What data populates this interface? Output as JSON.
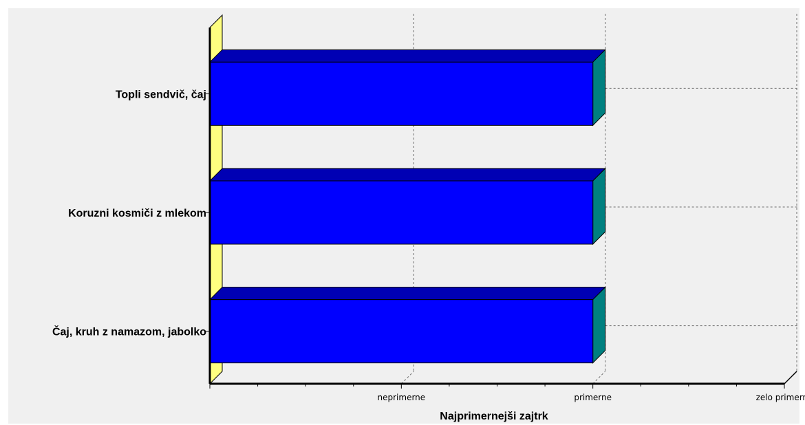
{
  "chart_data": {
    "type": "bar",
    "orientation": "horizontal",
    "style": "3d",
    "categories": [
      "Topli sendvič, čaj",
      "Koruzni kosmiči z mlekom",
      "Čaj, kruh z namazom, jabolko"
    ],
    "values": [
      2,
      2,
      2
    ],
    "xlabel": "Najprimernejši zajtrk",
    "ylabel": "",
    "xlim": [
      0,
      3
    ],
    "x_ticks": [
      {
        "value": 1,
        "label": "neprimerne"
      },
      {
        "value": 2,
        "label": "primerne"
      },
      {
        "value": 3,
        "label": "zelo primerne"
      }
    ],
    "grid": true,
    "colors": {
      "bar_front": "#0000ff",
      "bar_top": "#0000b4",
      "bar_side": "#008080",
      "wall": "#ffff80",
      "panel": "#f0f0f0"
    }
  }
}
